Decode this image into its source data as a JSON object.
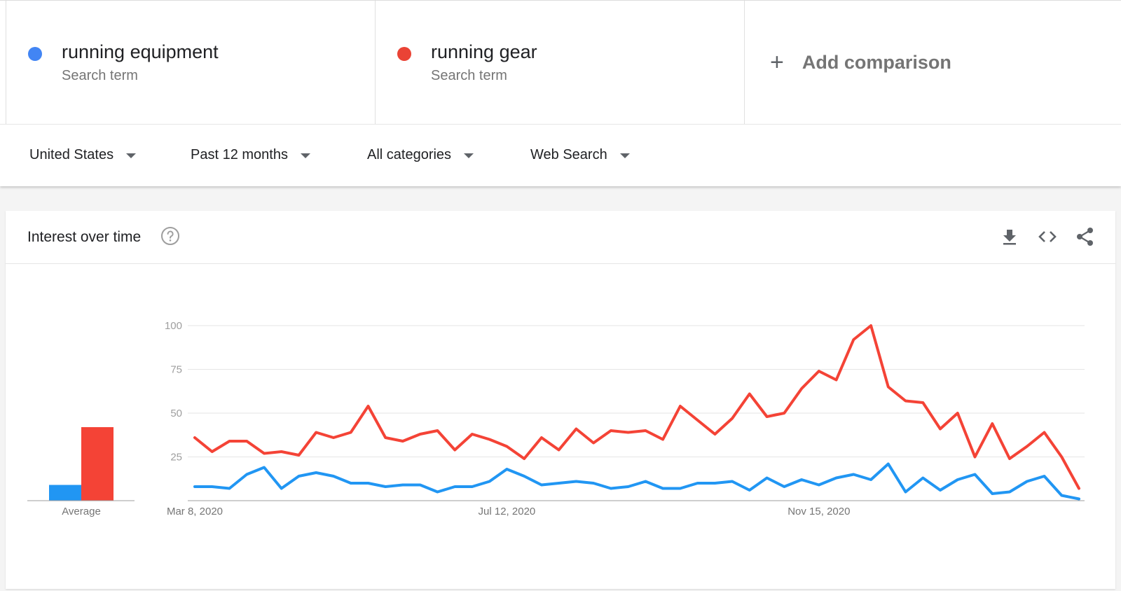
{
  "terms": [
    {
      "name": "running equipment",
      "type": "Search term",
      "color": "#4285f4"
    },
    {
      "name": "running gear",
      "type": "Search term",
      "color": "#ea4335"
    }
  ],
  "add_comparison": {
    "label": "Add comparison",
    "icon": "plus-icon"
  },
  "filters": [
    {
      "label": "United States"
    },
    {
      "label": "Past 12 months"
    },
    {
      "label": "All categories"
    },
    {
      "label": "Web Search"
    }
  ],
  "card": {
    "title": "Interest over time",
    "icons": [
      "help-icon",
      "download-icon",
      "embed-code-icon",
      "share-icon"
    ]
  },
  "chart_data": {
    "type": "line",
    "title": "",
    "xlabel": "",
    "ylabel": "",
    "ylim": [
      0,
      100
    ],
    "y_ticks": [
      "100",
      "75",
      "50",
      "25"
    ],
    "x_tick_labels": [
      "Mar 8, 2020",
      "Jul 12, 2020",
      "Nov 15, 2020"
    ],
    "grid": true,
    "series": [
      {
        "name": "running equipment",
        "color": "#2196f3",
        "values": [
          8,
          8,
          7,
          15,
          19,
          7,
          14,
          16,
          14,
          10,
          10,
          8,
          9,
          9,
          5,
          8,
          8,
          11,
          18,
          14,
          9,
          10,
          11,
          10,
          7,
          8,
          11,
          7,
          7,
          10,
          10,
          11,
          6,
          13,
          8,
          12,
          9,
          13,
          15,
          12,
          21,
          5,
          13,
          6,
          12,
          15,
          4,
          5,
          11,
          14,
          3,
          1
        ]
      },
      {
        "name": "running gear",
        "color": "#f44336",
        "values": [
          36,
          28,
          34,
          34,
          27,
          28,
          26,
          39,
          36,
          39,
          54,
          36,
          34,
          38,
          40,
          29,
          38,
          35,
          31,
          24,
          36,
          29,
          41,
          33,
          40,
          39,
          40,
          35,
          54,
          46,
          38,
          47,
          61,
          48,
          50,
          64,
          74,
          69,
          92,
          100,
          65,
          57,
          56,
          41,
          50,
          25,
          44,
          24,
          31,
          39,
          25,
          7
        ]
      }
    ],
    "average": {
      "label": "Average",
      "values": [
        9,
        42
      ]
    }
  }
}
